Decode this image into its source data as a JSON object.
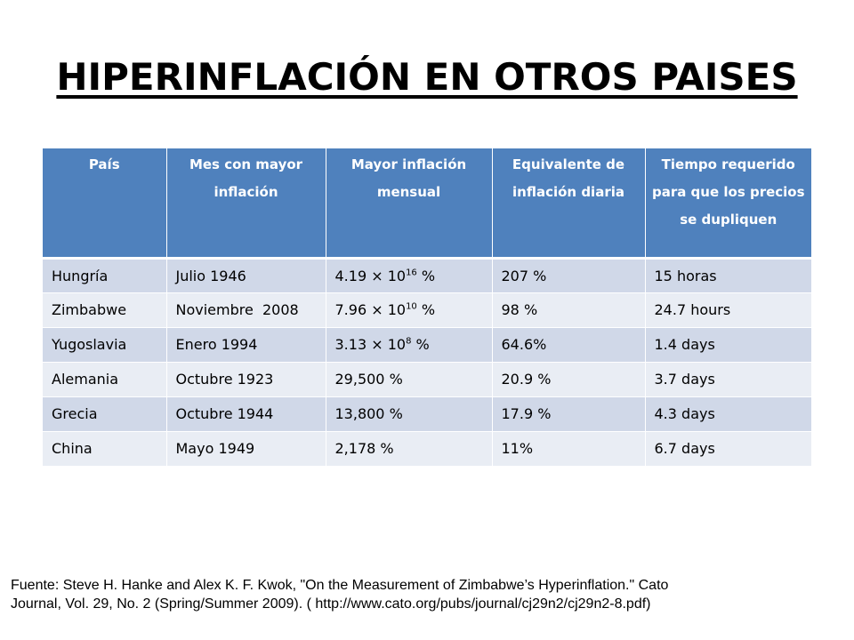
{
  "title": "HIPERINFLACIÓN EN OTROS PAISES",
  "table": {
    "headers": [
      "País",
      "Mes con mayor inflación",
      "Mayor inflación mensual",
      "Equivalente de inflación diaria",
      "Tiempo requerido para que los precios se dupliquen"
    ],
    "rows": [
      {
        "country": "Hungría",
        "month": "Julio 1946",
        "monthly_base": "4.19 × 10",
        "monthly_exp": "16",
        "monthly_suffix": " %",
        "daily": "207 %",
        "doubling": "15 horas"
      },
      {
        "country": "Zimbabwe",
        "month": "Noviembre  2008",
        "monthly_base": "7.96 × 10",
        "monthly_exp": "10",
        "monthly_suffix": " %",
        "daily": "98 %",
        "doubling": "24.7 hours"
      },
      {
        "country": "Yugoslavia",
        "month": "Enero 1994",
        "monthly_base": "3.13 × 10",
        "monthly_exp": "8",
        "monthly_suffix": " %",
        "daily": "64.6%",
        "doubling": "1.4 days"
      },
      {
        "country": "Alemania",
        "month": "Octubre 1923",
        "monthly": "29,500 %",
        "daily": "20.9 %",
        "doubling": "3.7 days"
      },
      {
        "country": "Grecia",
        "month": "Octubre 1944",
        "monthly": "13,800 %",
        "daily": "17.9 %",
        "doubling": "4.3 days"
      },
      {
        "country": "China",
        "month": "Mayo 1949",
        "monthly": "2,178 %",
        "daily": "11%",
        "doubling": "6.7 days"
      }
    ]
  },
  "source_line1": "Fuente: Steve H. Hanke and Alex K. F. Kwok, \"On the Measurement of Zimbabwe’s Hyperinflation.\" Cato",
  "source_line2": "Journal, Vol. 29, No. 2 (Spring/Summer 2009). ( http://www.cato.org/pubs/journal/cj29n2/cj29n2-8.pdf)",
  "colors": {
    "header_bg": "#4f81bd",
    "row_dark": "#d0d8e8",
    "row_light": "#e9edf4"
  }
}
